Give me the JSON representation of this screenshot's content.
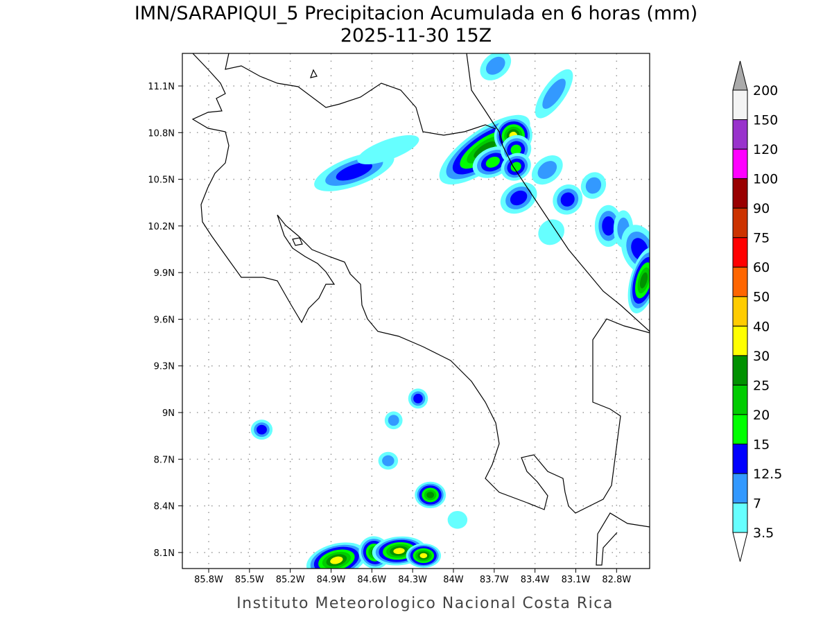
{
  "title": {
    "line1": "IMN/SARAPIQUI_5 Precipitacion Acumulada en 6 horas (mm)",
    "line2": "2025-11-30 15Z"
  },
  "credit": "Instituto Meteorologico Nacional Costa Rica",
  "chart_data": {
    "type": "heatmap",
    "projection": "lat-lon",
    "lon_range_w": [
      86.0,
      82.55
    ],
    "lat_range_n": [
      8.0,
      11.31
    ],
    "grid": true,
    "x_ticks": [
      {
        "value": 85.8,
        "label": "85.8W"
      },
      {
        "value": 85.5,
        "label": "85.5W"
      },
      {
        "value": 85.2,
        "label": "85.2W"
      },
      {
        "value": 84.9,
        "label": "84.9W"
      },
      {
        "value": 84.6,
        "label": "84.6W"
      },
      {
        "value": 84.3,
        "label": "84.3W"
      },
      {
        "value": 84.0,
        "label": "84W"
      },
      {
        "value": 83.7,
        "label": "83.7W"
      },
      {
        "value": 83.4,
        "label": "83.4W"
      },
      {
        "value": 83.1,
        "label": "83.1W"
      },
      {
        "value": 82.8,
        "label": "82.8W"
      }
    ],
    "y_ticks": [
      {
        "value": 11.1,
        "label": "11.1N"
      },
      {
        "value": 10.8,
        "label": "10.8N"
      },
      {
        "value": 10.5,
        "label": "10.5N"
      },
      {
        "value": 10.2,
        "label": "10.2N"
      },
      {
        "value": 9.9,
        "label": "9.9N"
      },
      {
        "value": 9.6,
        "label": "9.6N"
      },
      {
        "value": 9.3,
        "label": "9.3N"
      },
      {
        "value": 9.0,
        "label": "9N"
      },
      {
        "value": 8.7,
        "label": "8.7N"
      },
      {
        "value": 8.4,
        "label": "8.4N"
      },
      {
        "value": 8.1,
        "label": "8.1N"
      }
    ],
    "colorbar": {
      "levels": [
        "3.5",
        "7",
        "12.5",
        "15",
        "20",
        "25",
        "30",
        "40",
        "50",
        "60",
        "75",
        "90",
        "100",
        "120",
        "150",
        "200"
      ],
      "colors": [
        "#66ffff",
        "#3399ff",
        "#0000ff",
        "#00ff00",
        "#00cc00",
        "#009100",
        "#ffff00",
        "#ffcc00",
        "#ff6600",
        "#ff0000",
        "#cc3300",
        "#990000",
        "#ff00ff",
        "#9933cc",
        "#f4f4f4"
      ],
      "over_color": "#aaaaaa",
      "under_color": "#ffffff"
    },
    "cells": [
      {
        "lon": 83.77,
        "lat": 10.69,
        "rx": 0.26,
        "ry": 0.075,
        "rot": -35,
        "max": 5
      },
      {
        "lon": 83.56,
        "lat": 10.78,
        "rx": 0.08,
        "ry": 0.07,
        "rot": -40,
        "max": 6
      },
      {
        "lon": 83.71,
        "lat": 10.61,
        "rx": 0.09,
        "ry": 0.05,
        "rot": -25,
        "max": 3
      },
      {
        "lon": 83.54,
        "lat": 10.69,
        "rx": 0.06,
        "ry": 0.05,
        "rot": -30,
        "max": 3
      },
      {
        "lon": 83.54,
        "lat": 10.58,
        "rx": 0.06,
        "ry": 0.045,
        "rot": -30,
        "max": 3
      },
      {
        "lon": 84.73,
        "lat": 10.55,
        "rx": 0.2,
        "ry": 0.05,
        "rot": -20,
        "max": 2
      },
      {
        "lon": 84.48,
        "lat": 10.69,
        "rx": 0.15,
        "ry": 0.03,
        "rot": -20,
        "max": 0
      },
      {
        "lon": 83.69,
        "lat": 11.23,
        "rx": 0.07,
        "ry": 0.04,
        "rot": -40,
        "max": 1
      },
      {
        "lon": 83.26,
        "lat": 11.05,
        "rx": 0.13,
        "ry": 0.035,
        "rot": -55,
        "max": 1
      },
      {
        "lon": 83.52,
        "lat": 10.38,
        "rx": 0.08,
        "ry": 0.05,
        "rot": -30,
        "max": 2
      },
      {
        "lon": 83.31,
        "lat": 10.56,
        "rx": 0.07,
        "ry": 0.04,
        "rot": -40,
        "max": 1
      },
      {
        "lon": 83.16,
        "lat": 10.37,
        "rx": 0.06,
        "ry": 0.05,
        "rot": -50,
        "max": 2
      },
      {
        "lon": 82.97,
        "lat": 10.46,
        "rx": 0.05,
        "ry": 0.04,
        "rot": -60,
        "max": 1
      },
      {
        "lon": 82.86,
        "lat": 10.2,
        "rx": 0.05,
        "ry": 0.08,
        "rot": 0,
        "max": 2
      },
      {
        "lon": 82.75,
        "lat": 10.18,
        "rx": 0.03,
        "ry": 0.07,
        "rot": 0,
        "max": 1
      },
      {
        "lon": 83.28,
        "lat": 10.16,
        "rx": 0.05,
        "ry": 0.04,
        "rot": -40,
        "max": 0
      },
      {
        "lon": 82.63,
        "lat": 10.05,
        "rx": 0.07,
        "ry": 0.1,
        "rot": -20,
        "max": 2
      },
      {
        "lon": 82.6,
        "lat": 9.85,
        "rx": 0.05,
        "ry": 0.14,
        "rot": 15,
        "max": 5
      },
      {
        "lon": 84.26,
        "lat": 9.09,
        "rx": 0.03,
        "ry": 0.03,
        "rot": 0,
        "max": 2
      },
      {
        "lon": 84.44,
        "lat": 8.95,
        "rx": 0.025,
        "ry": 0.025,
        "rot": 0,
        "max": 1
      },
      {
        "lon": 85.41,
        "lat": 8.89,
        "rx": 0.035,
        "ry": 0.03,
        "rot": 0,
        "max": 2
      },
      {
        "lon": 84.48,
        "lat": 8.69,
        "rx": 0.03,
        "ry": 0.025,
        "rot": 0,
        "max": 1
      },
      {
        "lon": 84.17,
        "lat": 8.47,
        "rx": 0.06,
        "ry": 0.045,
        "rot": 0,
        "max": 5
      },
      {
        "lon": 83.97,
        "lat": 8.31,
        "rx": 0.03,
        "ry": 0.025,
        "rot": 0,
        "max": 0
      },
      {
        "lon": 84.86,
        "lat": 8.05,
        "rx": 0.14,
        "ry": 0.06,
        "rot": -15,
        "max": 6
      },
      {
        "lon": 84.58,
        "lat": 8.1,
        "rx": 0.06,
        "ry": 0.06,
        "rot": -30,
        "max": 5
      },
      {
        "lon": 84.4,
        "lat": 8.11,
        "rx": 0.12,
        "ry": 0.05,
        "rot": -5,
        "max": 6
      },
      {
        "lon": 84.22,
        "lat": 8.08,
        "rx": 0.07,
        "ry": 0.04,
        "rot": 0,
        "max": 6
      }
    ]
  }
}
